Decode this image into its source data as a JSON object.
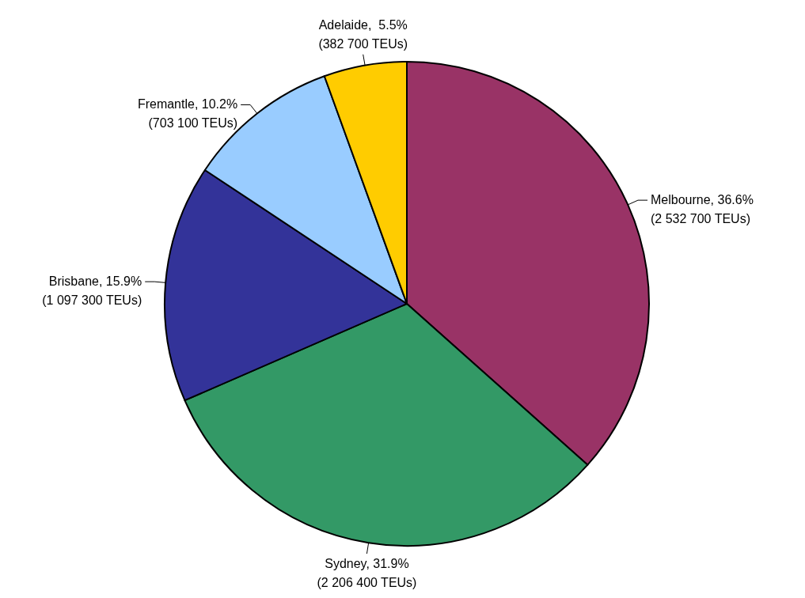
{
  "chart_data": {
    "type": "pie",
    "categories": [
      "Melbourne",
      "Sydney",
      "Brisbane",
      "Fremantle",
      "Adelaide"
    ],
    "values": [
      2532700,
      2206400,
      1097300,
      703100,
      382700
    ],
    "colors": [
      "#993366",
      "#339966",
      "#333399",
      "#99ccff",
      "#ffcc00"
    ],
    "value_labels": [
      "36.6%\n(2 532 700 TEUs)",
      "31.9%\n(2 206 400 TEUs)",
      "15.9%\n(1 097 300 TEUs)",
      "10.2%\n(703 100 TEUs)",
      " 5.5%\n(382 700 TEUs)"
    ]
  }
}
